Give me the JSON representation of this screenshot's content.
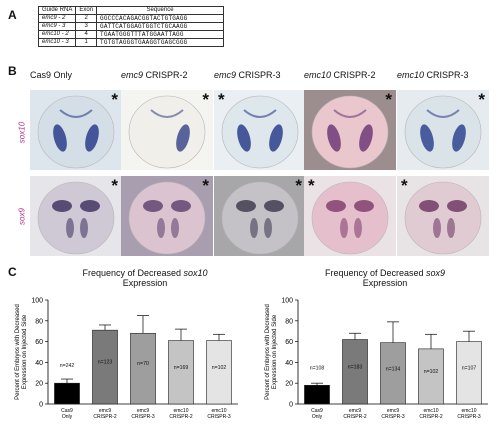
{
  "panels": {
    "a": "A",
    "b": "B",
    "c": "C"
  },
  "table": {
    "headers": [
      "Guide RNA",
      "Exon",
      "Sequence"
    ],
    "rows": [
      {
        "guide": "emc9 - 2",
        "exon": "2",
        "sequence": "GGCCCACAGACGGTACTGTGAGG"
      },
      {
        "guide": "emc9 - 3",
        "exon": "3",
        "sequence": "GATTCATGGAGTGGTCTGCAAGG"
      },
      {
        "guide": "emc10 - 2",
        "exon": "4",
        "sequence": "TGAATGGGTTTATGGAATTAGG"
      },
      {
        "guide": "emc10 - 3",
        "exon": "1",
        "sequence": "TGTGTAGGGTGAAGGTGAGCGGG"
      }
    ]
  },
  "columns": [
    {
      "gene": "",
      "text": "Cas9 Only"
    },
    {
      "gene": "emc9",
      "text": " CRISPR-2"
    },
    {
      "gene": "emc9",
      "text": " CRISPR-3"
    },
    {
      "gene": "emc10",
      "text": " CRISPR-2"
    },
    {
      "gene": "emc10",
      "text": " CRISPR-3"
    }
  ],
  "rows": [
    {
      "label": "sox10"
    },
    {
      "label": "sox9"
    }
  ],
  "asterisk": "*",
  "colors": {
    "row_label": "#b0308c",
    "bar_outline": "#222222"
  },
  "chart_data": [
    {
      "type": "bar",
      "title_parts": [
        "Frequency of Decreased ",
        "sox10",
        " Expression"
      ],
      "ylabel": "Percent of Embryos with Decreased Expression on Injected Side",
      "ylim": [
        0,
        100
      ],
      "yticks": [
        0,
        20,
        40,
        60,
        80,
        100
      ],
      "categories": [
        [
          "Cas9",
          "Only"
        ],
        [
          "emc9",
          "CRISPR-2"
        ],
        [
          "emc9",
          "CRISPR-3"
        ],
        [
          "emc10",
          "CRISPR-2"
        ],
        [
          "emc10",
          "CRISPR-3"
        ]
      ],
      "values": [
        20,
        71,
        68,
        61,
        61
      ],
      "errors": [
        4,
        5,
        17,
        11,
        6
      ],
      "n_labels": [
        "n=242",
        "n=123",
        "n=70",
        "n=169",
        "n=102"
      ],
      "colors": [
        "#000000",
        "#7a7a7a",
        "#9e9e9e",
        "#c4c4c4",
        "#e4e4e4"
      ]
    },
    {
      "type": "bar",
      "title_parts": [
        "Frequency of Decreased ",
        "sox9",
        " Expression"
      ],
      "ylabel": "Percent of Embryos with Decreased Expression on Injected Side",
      "ylim": [
        0,
        100
      ],
      "yticks": [
        0,
        20,
        40,
        60,
        80,
        100
      ],
      "categories": [
        [
          "Cas9",
          "Only"
        ],
        [
          "emc9",
          "CRISPR-2"
        ],
        [
          "emc9",
          "CRISPR-3"
        ],
        [
          "emc10",
          "CRISPR-2"
        ],
        [
          "emc10",
          "CRISPR-3"
        ]
      ],
      "values": [
        18,
        62,
        59,
        53,
        60
      ],
      "errors": [
        2,
        6,
        20,
        14,
        10
      ],
      "n_labels": [
        "n=108",
        "n=183",
        "n=134",
        "n=102",
        "n=107"
      ],
      "colors": [
        "#000000",
        "#7a7a7a",
        "#9e9e9e",
        "#c4c4c4",
        "#e4e4e4"
      ]
    }
  ]
}
